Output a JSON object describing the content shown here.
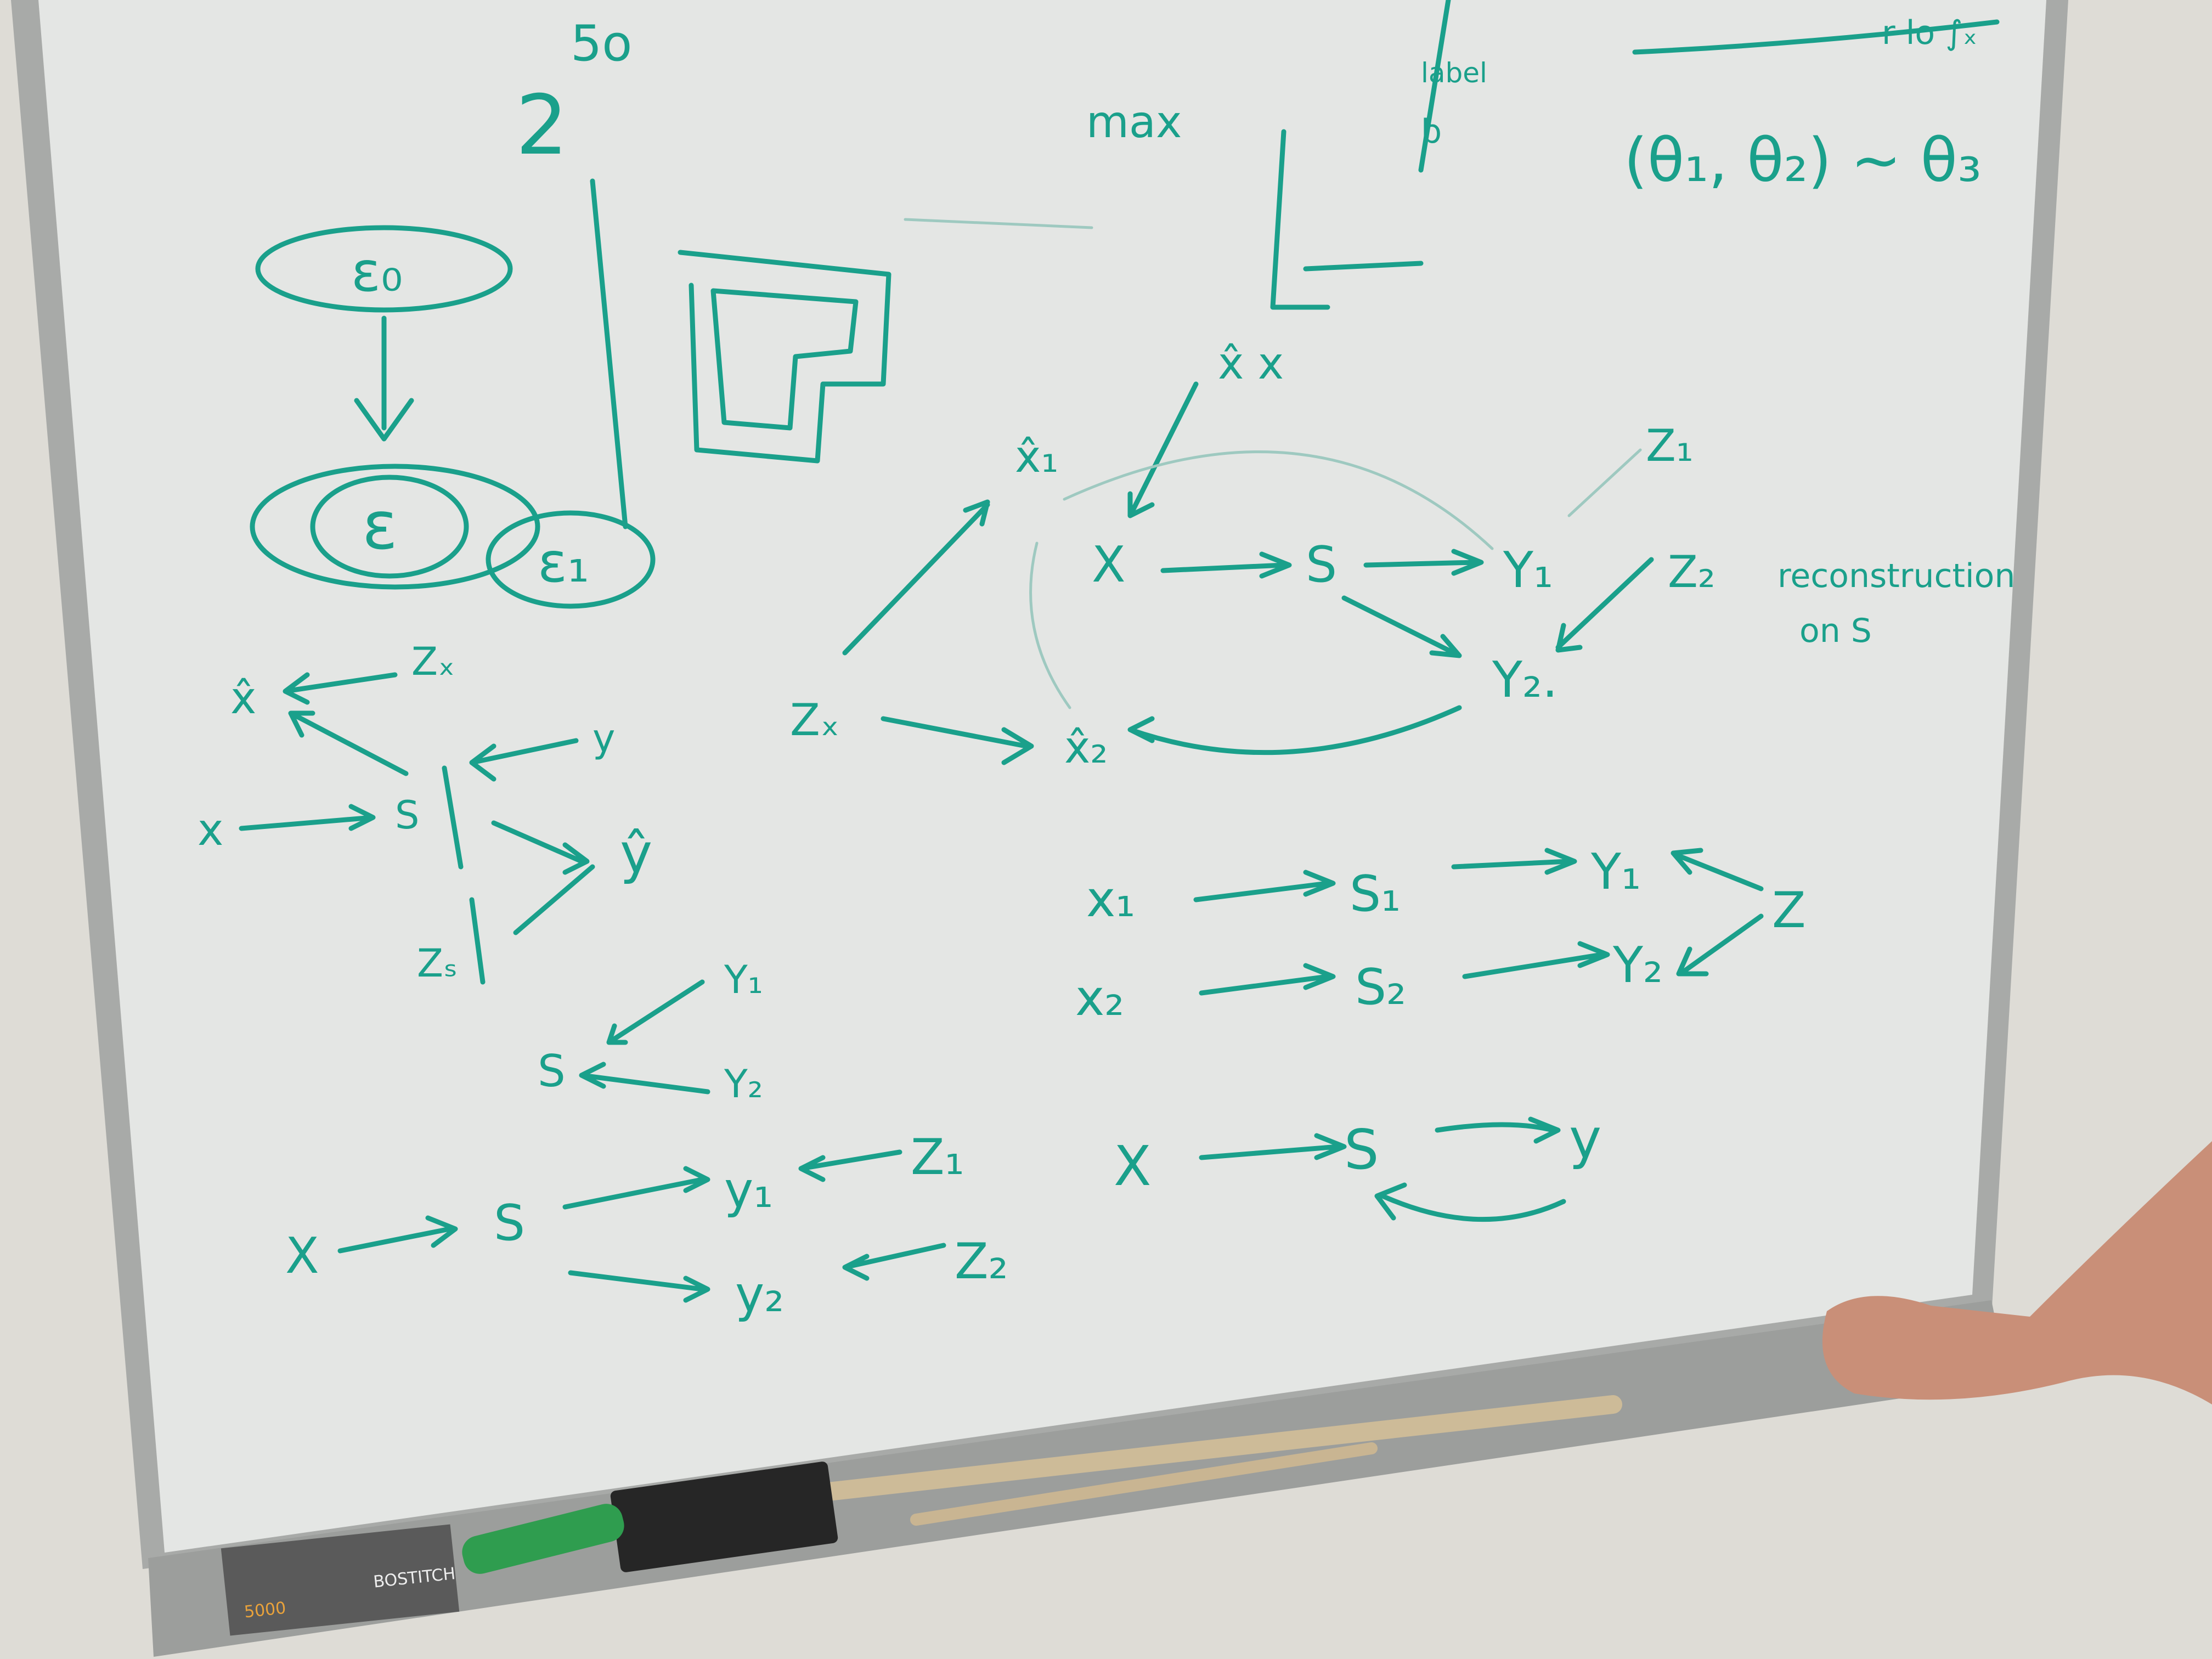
{
  "board": {
    "ink_color": "#1aa08b",
    "surface_color": "#e4e6e4",
    "frame_color": "#a8aaa8",
    "wall_color": "#dedcd6"
  },
  "notes": {
    "top_left_5o": "5o",
    "top_left_2": "2",
    "max": "max",
    "label": "label",
    "b": "b",
    "theta": "(θ₁, θ₂) ~ θ₃",
    "top_right_scribble": "r lo ∫ₓ",
    "reconstruction": "reconstruction",
    "on_s": "on S"
  },
  "left_diagram": {
    "e0": "ε₀",
    "e1": "ε₁",
    "e2": "ε",
    "x_hat": "x̂",
    "zx": "Zₓ",
    "y": "y",
    "x": "x",
    "s": "S",
    "y_hat": "ŷ",
    "zs": "Zₛ"
  },
  "middle_diagram": {
    "y1": "Y₁",
    "y2": "Y₂",
    "s": "S"
  },
  "bottom_left_diagram": {
    "x": "X",
    "s": "S",
    "y1": "y₁",
    "y2": "y₂",
    "z1": "Z₁",
    "z2": "Z₂"
  },
  "center_diagram": {
    "x": "X",
    "s": "S",
    "y1": "Y₁",
    "y2": "Y₂.",
    "z1": "Z₁",
    "z2": "Z₂",
    "zx": "Zₓ",
    "x1_hat": "x̂₁",
    "x2_hat": "x̂₂",
    "x_hat_top": "x̂ x"
  },
  "right_diagram": {
    "x1": "x₁",
    "s1": "S₁",
    "y1": "Y₁",
    "x2": "x₂",
    "s2": "S₂",
    "y2": "Y₂",
    "z": "Z"
  },
  "bottom_right_diagram": {
    "x": "X",
    "s": "S",
    "y": "y"
  },
  "tray": {
    "box_brand": "BOSTITCH",
    "box_count": "5000"
  }
}
